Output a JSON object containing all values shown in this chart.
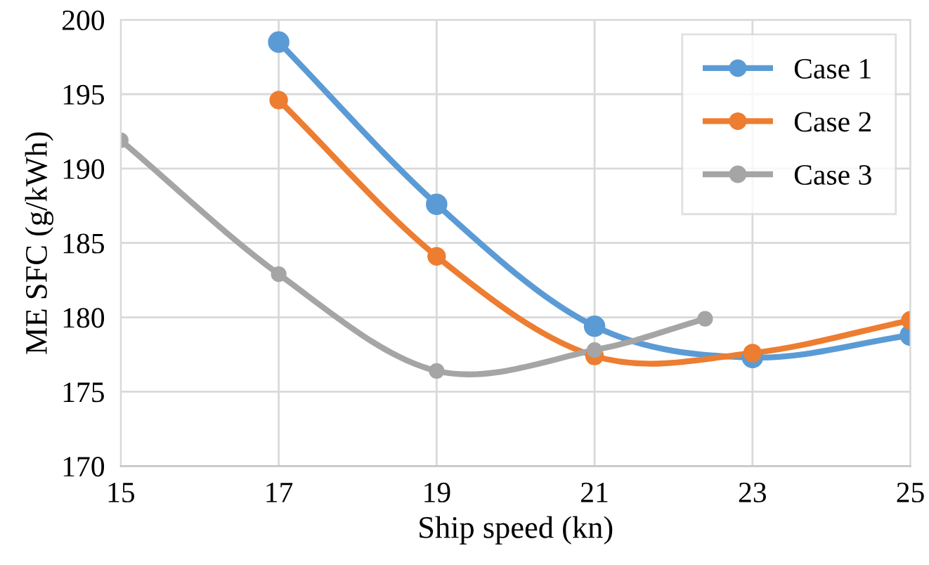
{
  "chart_data": {
    "type": "line",
    "xlabel": "Ship speed (kn)",
    "ylabel": "ME SFC (g/kWh)",
    "xlim": [
      15,
      25
    ],
    "xticks": [
      15,
      17,
      19,
      21,
      23,
      25
    ],
    "ylim": [
      170,
      200
    ],
    "yticks": [
      170,
      175,
      180,
      185,
      190,
      195,
      200
    ],
    "grid": true,
    "legend": "top right",
    "marker": "circle",
    "line_style": "solid",
    "series": [
      {
        "name": "Case 1",
        "color": "#5b9bd5",
        "x": [
          17,
          19,
          21,
          23,
          25
        ],
        "values": [
          198.5,
          187.6,
          179.4,
          177.3,
          178.8
        ]
      },
      {
        "name": "Case 2",
        "color": "#ed7d31",
        "x": [
          17,
          19,
          21,
          23,
          25
        ],
        "values": [
          194.6,
          184.1,
          177.4,
          177.6,
          179.8
        ]
      },
      {
        "name": "Case 3",
        "color": "#a5a5a5",
        "x": [
          15,
          17,
          19,
          21,
          22.4
        ],
        "values": [
          191.9,
          182.9,
          176.4,
          177.8,
          179.9
        ]
      }
    ]
  }
}
